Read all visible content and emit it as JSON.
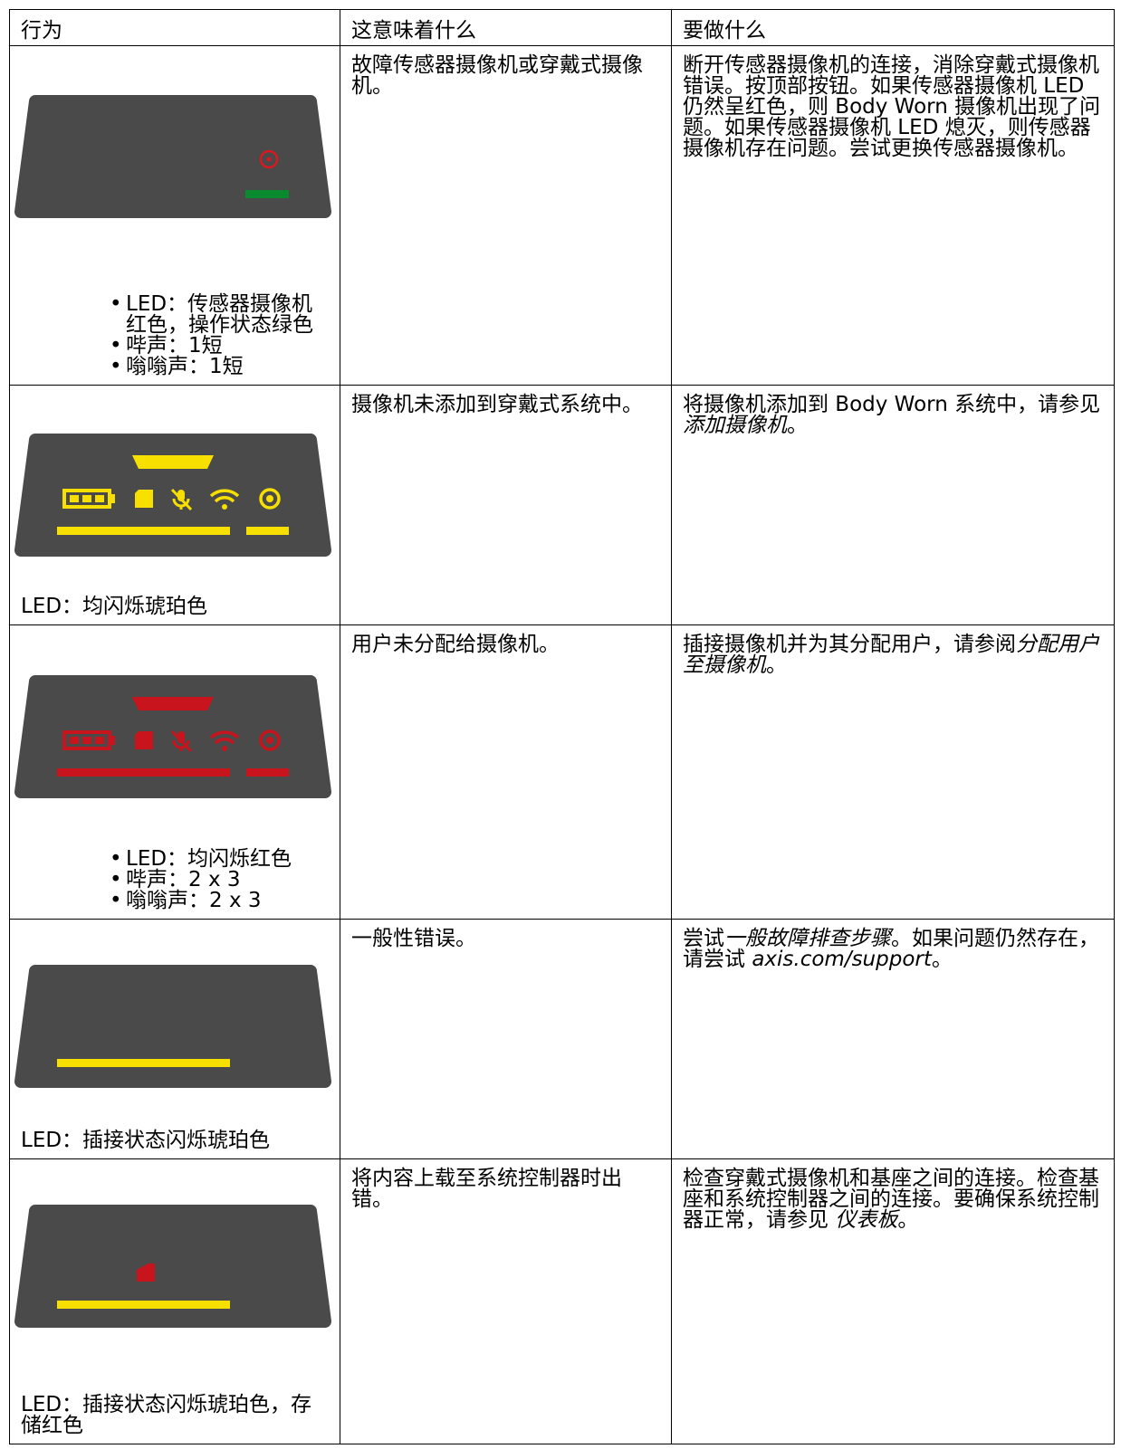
{
  "table": {
    "header": [
      "行为",
      "这意味着什么",
      "要做什么"
    ],
    "rows": [
      {
        "behavior": {
          "bullets": [
            "LED：传感器摄像机红色，操作状态绿色",
            "哔声：1短",
            "嗡嗡声：1短"
          ]
        },
        "meaning": "故障传感器摄像机或穿戴式摄像机。",
        "action": [
          "断开传感器摄像机的连接，消除穿戴式摄像机错误。按顶部按钮。如果传感器摄像机 LED 仍然呈红色，则 Body Worn 摄像机出现了问题。如果传感器摄像机 LED 熄灭，则传感器摄像机存在问题。尝试更换传感器摄像机。"
        ]
      },
      {
        "behavior": {
          "text": "LED：均闪烁琥珀色"
        },
        "meaning": "摄像机未添加到穿戴式系统中。",
        "action": [
          "将摄像机添加到 Body Worn 系统中，请参见",
          {
            "text": "添加摄像机",
            "style": "italic"
          },
          "。"
        ]
      },
      {
        "behavior": {
          "bullets": [
            "LED：均闪烁红色",
            "哔声：2 x 3",
            "嗡嗡声：2 x 3"
          ]
        },
        "meaning": "用户未分配给摄像机。",
        "action": [
          "插接摄像机并为其分配用户，请参阅",
          {
            "text": "分配用户至摄像机",
            "style": "italic"
          },
          "。"
        ]
      },
      {
        "behavior": {
          "text": "LED：插接状态闪烁琥珀色"
        },
        "meaning": "一般性错误。",
        "action": [
          "尝试",
          {
            "text": "一般故障排查步骤",
            "style": "italic"
          },
          "。如果问题仍然存在，请尝试 ",
          {
            "text": "axis.com/support",
            "style": "italic"
          },
          "。"
        ]
      },
      {
        "behavior": {
          "text": "LED：插接状态闪烁琥珀色，存储红色"
        },
        "meaning": "将内容上载至系统控制器时出错。",
        "action": [
          "检查穿戴式摄像机和基座之间的连接。检查基座和系统控制器之间的连接。要确保系统控制器正常，请参见 ",
          {
            "text": "仪表板",
            "style": "italic"
          },
          "。"
        ]
      }
    ]
  }
}
